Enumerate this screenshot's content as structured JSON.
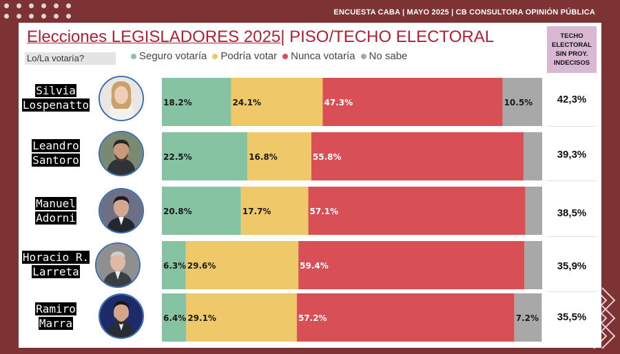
{
  "header": {
    "text": "ENCUESTA CABA | MAYO 2025 | CB CONSULTORA OPINIÓN PÚBLICA"
  },
  "title": {
    "part1": "Elecciones LEGISLADORES 2025",
    "separator": "|",
    "part2": " PISO/TECHO ELECTORAL"
  },
  "subtitle": "Lo/La votaría?",
  "techo_header": [
    "TECHO",
    "ELECTORAL",
    "SIN PROY.",
    "INDECISOS"
  ],
  "colors": {
    "seguro": "#86c3a3",
    "podria": "#eec869",
    "nunca": "#d84f55",
    "nosabe": "#a8a8a8",
    "title": "#b21e33",
    "background": "#7d3233"
  },
  "chart_data": {
    "type": "bar",
    "orientation": "horizontal",
    "stacked": true,
    "legend": [
      "Seguro votaría",
      "Podría votar",
      "Nunca votaría",
      "No sabe"
    ],
    "legend_position": "top",
    "categories": [
      {
        "name": [
          "Silvia",
          "Lospenatto"
        ],
        "values": [
          18.2,
          24.1,
          47.3,
          10.5
        ],
        "labels": [
          "18.2%",
          "24.1%",
          "47.3%",
          "10.5%"
        ],
        "techo": "42,3%"
      },
      {
        "name": [
          "Leandro",
          "Santoro"
        ],
        "values": [
          22.5,
          16.8,
          55.8,
          4.9
        ],
        "labels": [
          "22.5%",
          "16.8%",
          "55.8%",
          ""
        ],
        "techo": "39,3%"
      },
      {
        "name": [
          "Manuel",
          "Adorni"
        ],
        "values": [
          20.8,
          17.7,
          57.1,
          4.4
        ],
        "labels": [
          "20.8%",
          "17.7%",
          "57.1%",
          ""
        ],
        "techo": "38,5%"
      },
      {
        "name": [
          "Horacio R.",
          "Larreta"
        ],
        "values": [
          6.3,
          29.6,
          59.4,
          4.7
        ],
        "labels": [
          "6.3%",
          "29.6%",
          "59.4%",
          ""
        ],
        "techo": "35,9%"
      },
      {
        "name": [
          "Ramiro",
          "Marra"
        ],
        "values": [
          6.4,
          29.1,
          57.2,
          7.2
        ],
        "labels": [
          "6.4%",
          "29.1%",
          "57.2%",
          "7.2%"
        ],
        "techo": "35,5%"
      }
    ],
    "xlim": [
      0,
      100
    ]
  }
}
